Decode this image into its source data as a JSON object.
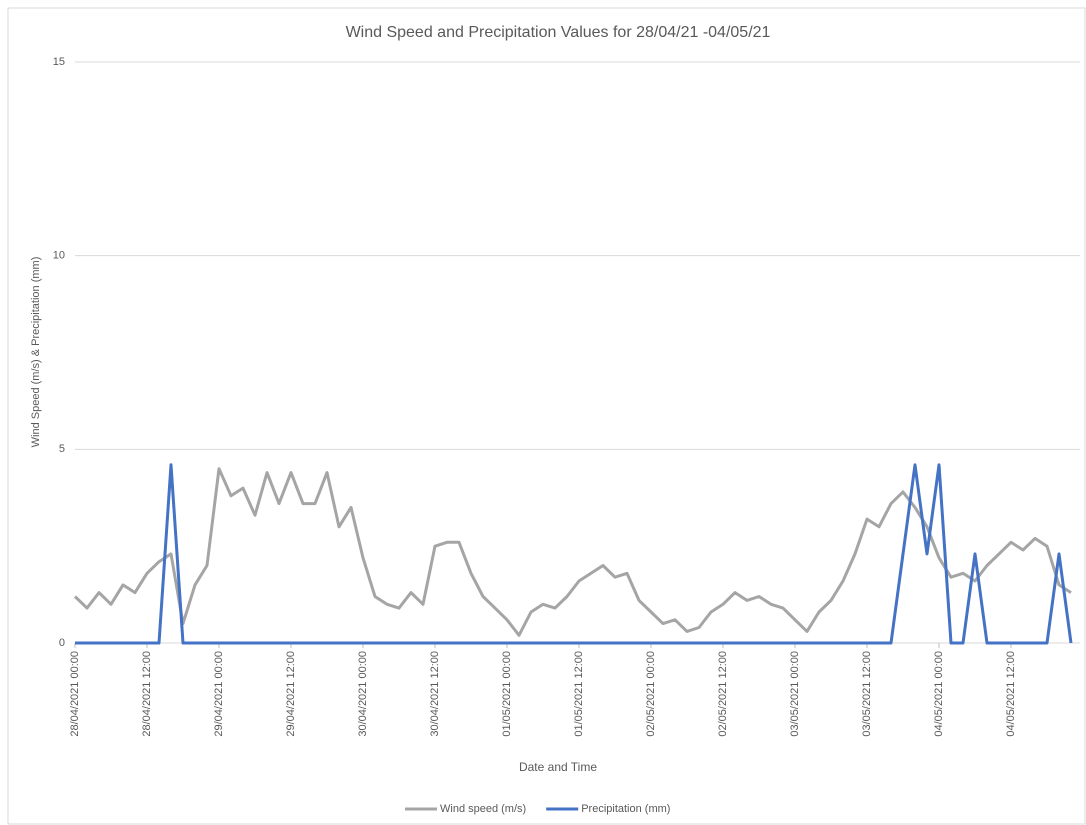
{
  "chart_data": {
    "type": "line",
    "title": "Wind Speed and Precipitation Values for 28/04/21 -04/05/21",
    "x_label": "Date and Time",
    "y_label": "Wind Speed  (m/s) & Precipitation (mm)",
    "x": [
      "28/04/2021 00:00",
      "28/04/2021 02:00",
      "28/04/2021 04:00",
      "28/04/2021 06:00",
      "28/04/2021 08:00",
      "28/04/2021 10:00",
      "28/04/2021 12:00",
      "28/04/2021 14:00",
      "28/04/2021 16:00",
      "28/04/2021 18:00",
      "28/04/2021 20:00",
      "28/04/2021 22:00",
      "29/04/2021 00:00",
      "29/04/2021 02:00",
      "29/04/2021 04:00",
      "29/04/2021 06:00",
      "29/04/2021 08:00",
      "29/04/2021 10:00",
      "29/04/2021 12:00",
      "29/04/2021 14:00",
      "29/04/2021 16:00",
      "29/04/2021 18:00",
      "29/04/2021 20:00",
      "29/04/2021 22:00",
      "30/04/2021 00:00",
      "30/04/2021 02:00",
      "30/04/2021 04:00",
      "30/04/2021 06:00",
      "30/04/2021 08:00",
      "30/04/2021 10:00",
      "30/04/2021 12:00",
      "30/04/2021 14:00",
      "30/04/2021 16:00",
      "30/04/2021 18:00",
      "30/04/2021 20:00",
      "30/04/2021 22:00",
      "01/05/2021 00:00",
      "01/05/2021 02:00",
      "01/05/2021 04:00",
      "01/05/2021 06:00",
      "01/05/2021 08:00",
      "01/05/2021 10:00",
      "01/05/2021 12:00",
      "01/05/2021 14:00",
      "01/05/2021 16:00",
      "01/05/2021 18:00",
      "01/05/2021 20:00",
      "01/05/2021 22:00",
      "02/05/2021 00:00",
      "02/05/2021 02:00",
      "02/05/2021 04:00",
      "02/05/2021 06:00",
      "02/05/2021 08:00",
      "02/05/2021 10:00",
      "02/05/2021 12:00",
      "02/05/2021 14:00",
      "02/05/2021 16:00",
      "02/05/2021 18:00",
      "02/05/2021 20:00",
      "02/05/2021 22:00",
      "03/05/2021 00:00",
      "03/05/2021 02:00",
      "03/05/2021 04:00",
      "03/05/2021 06:00",
      "03/05/2021 08:00",
      "03/05/2021 10:00",
      "03/05/2021 12:00",
      "03/05/2021 14:00",
      "03/05/2021 16:00",
      "03/05/2021 18:00",
      "03/05/2021 20:00",
      "03/05/2021 22:00",
      "04/05/2021 00:00",
      "04/05/2021 02:00",
      "04/05/2021 04:00",
      "04/05/2021 06:00",
      "04/05/2021 08:00",
      "04/05/2021 10:00",
      "04/05/2021 12:00",
      "04/05/2021 14:00",
      "04/05/2021 16:00",
      "04/05/2021 18:00",
      "04/05/2021 20:00",
      "04/05/2021 22:00"
    ],
    "series": [
      {
        "name": "Wind speed (m/s)",
        "color": "#a5a5a5",
        "values": [
          1.2,
          0.9,
          1.3,
          1.0,
          1.5,
          1.3,
          1.8,
          2.1,
          2.3,
          0.5,
          1.5,
          2.0,
          4.5,
          3.8,
          4.0,
          3.3,
          4.4,
          3.6,
          4.4,
          3.6,
          3.6,
          4.4,
          3.0,
          3.5,
          2.2,
          1.2,
          1.0,
          0.9,
          1.3,
          1.0,
          2.5,
          2.6,
          2.6,
          1.8,
          1.2,
          0.9,
          0.6,
          0.2,
          0.8,
          1.0,
          0.9,
          1.2,
          1.6,
          1.8,
          2.0,
          1.7,
          1.8,
          1.1,
          0.8,
          0.5,
          0.6,
          0.3,
          0.4,
          0.8,
          1.0,
          1.3,
          1.1,
          1.2,
          1.0,
          0.9,
          0.6,
          0.3,
          0.8,
          1.1,
          1.6,
          2.3,
          3.2,
          3.0,
          3.6,
          3.9,
          3.5,
          3.0,
          2.2,
          1.7,
          1.8,
          1.6,
          2.0,
          2.3,
          2.6,
          2.4,
          2.7,
          2.5,
          1.5,
          1.3
        ]
      },
      {
        "name": "Precipitation (mm)",
        "color": "#4472c4",
        "values": [
          0,
          0,
          0,
          0,
          0,
          0,
          0,
          0,
          4.6,
          0,
          0,
          0,
          0,
          0,
          0,
          0,
          0,
          0,
          0,
          0,
          0,
          0,
          0,
          0,
          0,
          0,
          0,
          0,
          0,
          0,
          0,
          0,
          0,
          0,
          0,
          0,
          0,
          0,
          0,
          0,
          0,
          0,
          0,
          0,
          0,
          0,
          0,
          0,
          0,
          0,
          0,
          0,
          0,
          0,
          0,
          0,
          0,
          0,
          0,
          0,
          0,
          0,
          0,
          0,
          0,
          0,
          0,
          0,
          0,
          2.3,
          4.6,
          2.3,
          4.6,
          0,
          0,
          2.3,
          0,
          0,
          0,
          0,
          0,
          0,
          2.3,
          0
        ]
      }
    ],
    "xlim": [
      "28/04/2021 00:00",
      "04/05/2021 23:30"
    ],
    "xticks": [
      "28/04/2021 00:00",
      "28/04/2021 12:00",
      "29/04/2021 00:00",
      "29/04/2021 12:00",
      "30/04/2021 00:00",
      "30/04/2021 12:00",
      "01/05/2021 00:00",
      "01/05/2021 12:00",
      "02/05/2021 00:00",
      "02/05/2021 12:00",
      "03/05/2021 00:00",
      "03/05/2021 12:00",
      "04/05/2021 00:00",
      "04/05/2021 12:00"
    ],
    "ylim": [
      0,
      15
    ],
    "yticks": [
      0,
      5,
      10,
      15
    ],
    "grid": true,
    "legend": "bottom"
  }
}
